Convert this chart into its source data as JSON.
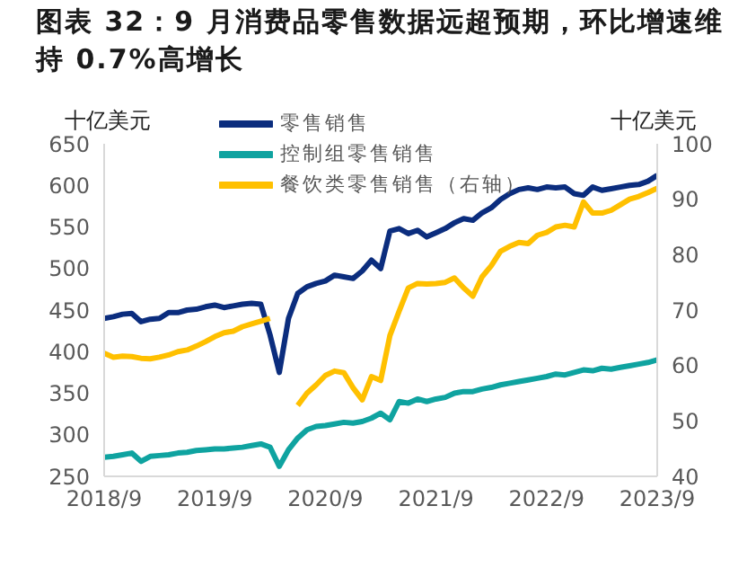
{
  "chart_data": {
    "type": "line",
    "title": "图表 32：9 月消费品零售数据远超预期，环比增速维持 0.7%高增长",
    "ylabel": "十亿美元",
    "y2label": "十亿美元",
    "categories": [
      "2018/9",
      null,
      null,
      null,
      null,
      null,
      null,
      null,
      null,
      null,
      null,
      null,
      "2019/9",
      null,
      null,
      null,
      null,
      null,
      null,
      null,
      null,
      null,
      null,
      null,
      "2020/9",
      null,
      null,
      null,
      null,
      null,
      null,
      null,
      null,
      null,
      null,
      null,
      "2021/9",
      null,
      null,
      null,
      null,
      null,
      null,
      null,
      null,
      null,
      null,
      null,
      "2022/9",
      null,
      null,
      null,
      null,
      null,
      null,
      null,
      null,
      null,
      null,
      null,
      "2023/9"
    ],
    "series": [
      {
        "name": "零售销售",
        "color": "#0b2d7e",
        "values": [
          440,
          442,
          445,
          446,
          436,
          439,
          440,
          447,
          447,
          450,
          451,
          454,
          456,
          453,
          455,
          457,
          458,
          457,
          420,
          375,
          440,
          470,
          478,
          482,
          485,
          492,
          490,
          488,
          497,
          510,
          500,
          545,
          548,
          542,
          546,
          538,
          543,
          548,
          555,
          560,
          558,
          567,
          573,
          583,
          590,
          595,
          597,
          595,
          598,
          597,
          598,
          590,
          588,
          598,
          594,
          596,
          598,
          600,
          601,
          605,
          612
        ]
      },
      {
        "name": "控制组零售销售",
        "color": "#0fa3a0",
        "values": [
          273,
          274,
          276,
          278,
          268,
          274,
          275,
          276,
          278,
          279,
          281,
          282,
          283,
          283,
          284,
          285,
          287,
          289,
          285,
          262,
          282,
          296,
          306,
          310,
          311,
          313,
          315,
          314,
          316,
          320,
          326,
          318,
          340,
          338,
          343,
          340,
          343,
          345,
          350,
          352,
          352,
          355,
          357,
          360,
          362,
          364,
          366,
          368,
          370,
          373,
          372,
          375,
          378,
          377,
          380,
          379,
          381,
          383,
          385,
          387,
          390
        ]
      },
      {
        "name": "餐饮类零售销售（右轴）",
        "color": "#ffc000",
        "axis": "y2",
        "values": [
          62.2,
          61.5,
          61.7,
          61.6,
          61.3,
          61.2,
          61.5,
          61.9,
          62.5,
          62.8,
          63.5,
          64.3,
          65.2,
          65.9,
          66.2,
          67,
          67.5,
          68,
          68.5,
          null,
          null,
          52.8,
          55,
          56.5,
          58.2,
          59,
          58.7,
          56,
          53.8,
          58,
          57.3,
          65.4,
          69.8,
          74,
          74.8,
          74.7,
          74.8,
          75,
          75.8,
          74,
          72.5,
          76,
          78,
          80.6,
          81.5,
          82.2,
          82,
          83.5,
          84,
          85,
          85.3,
          85,
          89.5,
          87.5,
          87.5,
          88,
          89,
          90,
          90.5,
          91.2,
          92
        ]
      }
    ],
    "ylim": [
      250,
      650
    ],
    "yticks": [
      250,
      300,
      350,
      400,
      450,
      500,
      550,
      600,
      650
    ],
    "y2lim": [
      40,
      100
    ],
    "y2ticks": [
      40,
      50,
      60,
      70,
      80,
      90,
      100
    ],
    "grid": false,
    "legend": "top left",
    "marker": "none",
    "line_style": "solid"
  }
}
